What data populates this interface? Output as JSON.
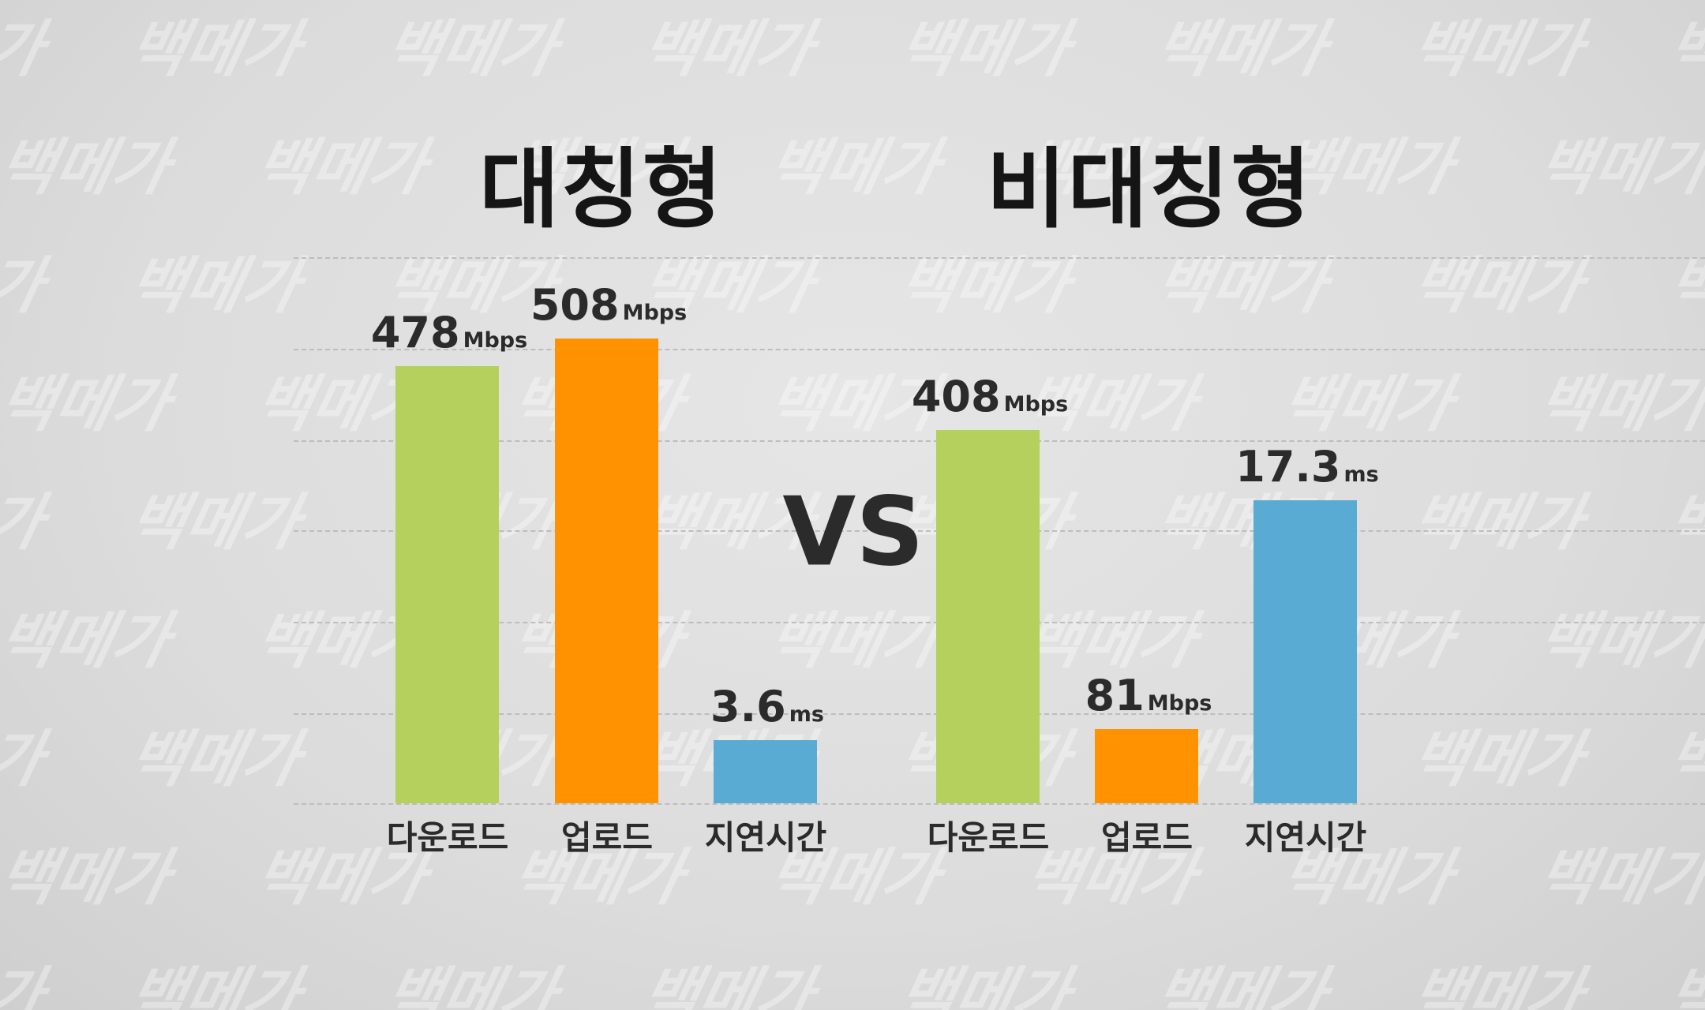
{
  "watermark": "백메가",
  "vs_label": "VS",
  "colors": {
    "download": "#b5d05c",
    "upload": "#ff9200",
    "latency": "#5aabd3"
  },
  "chart_data": [
    {
      "type": "bar",
      "title": "대칭형",
      "categories": [
        "다운로드",
        "업로드",
        "지연시간"
      ],
      "values": [
        478,
        508,
        3.6
      ],
      "units": [
        "Mbps",
        "Mbps",
        "ms"
      ],
      "value_labels": [
        "478",
        "508",
        "3.6"
      ],
      "grid": true
    },
    {
      "type": "bar",
      "title": "비대칭형",
      "categories": [
        "다운로드",
        "업로드",
        "지연시간"
      ],
      "values": [
        408,
        81,
        17.3
      ],
      "units": [
        "Mbps",
        "Mbps",
        "ms"
      ],
      "value_labels": [
        "408",
        "81",
        "17.3"
      ],
      "grid": true
    }
  ]
}
